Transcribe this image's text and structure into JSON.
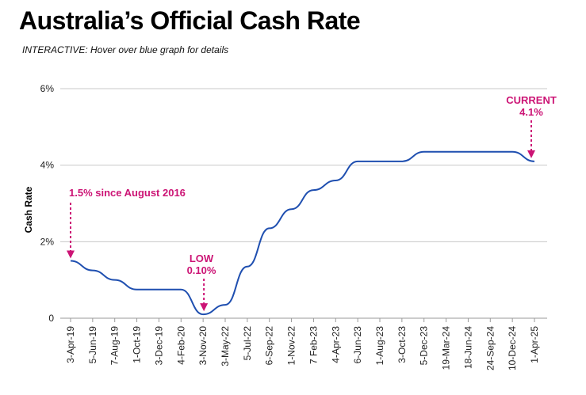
{
  "header": {
    "title": "Australia’s Official Cash Rate",
    "subtitle": "INTERACTIVE: Hover over blue graph for details"
  },
  "colors": {
    "line": "#1f4fb0",
    "accent": "#cc1475",
    "grid": "#c8c8c8"
  },
  "chart_data": {
    "type": "line",
    "ylabel": "Cash Rate",
    "ylim": [
      0,
      6
    ],
    "y_ticks": [
      {
        "value": 0,
        "label": "0"
      },
      {
        "value": 2,
        "label": "2%"
      },
      {
        "value": 4,
        "label": "4%"
      },
      {
        "value": 6,
        "label": "6%"
      }
    ],
    "x_ticks": [
      "3-Apr-19",
      "5-Jun-19",
      "7-Aug-19",
      "1-Oct-19",
      "3-Dec-19",
      "4-Feb-20",
      "3-Nov-20",
      "3-May-22",
      "5-Jul-22",
      "6-Sep-22",
      "1-Nov-22",
      "7 Feb-23",
      "4-Apr-23",
      "6-Jun-23",
      "1-Aug-23",
      "3-Oct-23",
      "5-Dec-23",
      "19-Mar-24",
      "18-Jun-24",
      "24-Sep-24",
      "10-Dec-24",
      "1-Apr-25"
    ],
    "series": [
      {
        "values": [
          1.5,
          1.25,
          1.0,
          0.75,
          0.75,
          0.75,
          0.1,
          0.35,
          1.35,
          2.35,
          2.85,
          3.35,
          3.6,
          4.1,
          4.1,
          4.1,
          4.35,
          4.35,
          4.35,
          4.35,
          4.35,
          4.1
        ]
      }
    ],
    "annotations": [
      {
        "name": "since-2016",
        "text": [
          "1.5% since August 2016"
        ],
        "category_index": 0,
        "value": 1.5
      },
      {
        "name": "low",
        "text": [
          "LOW",
          "0.10%"
        ],
        "category_index": 6,
        "value": 0.1
      },
      {
        "name": "current",
        "text": [
          "CURRENT",
          "4.1%"
        ],
        "category_index": 21,
        "value": 4.1
      }
    ]
  }
}
